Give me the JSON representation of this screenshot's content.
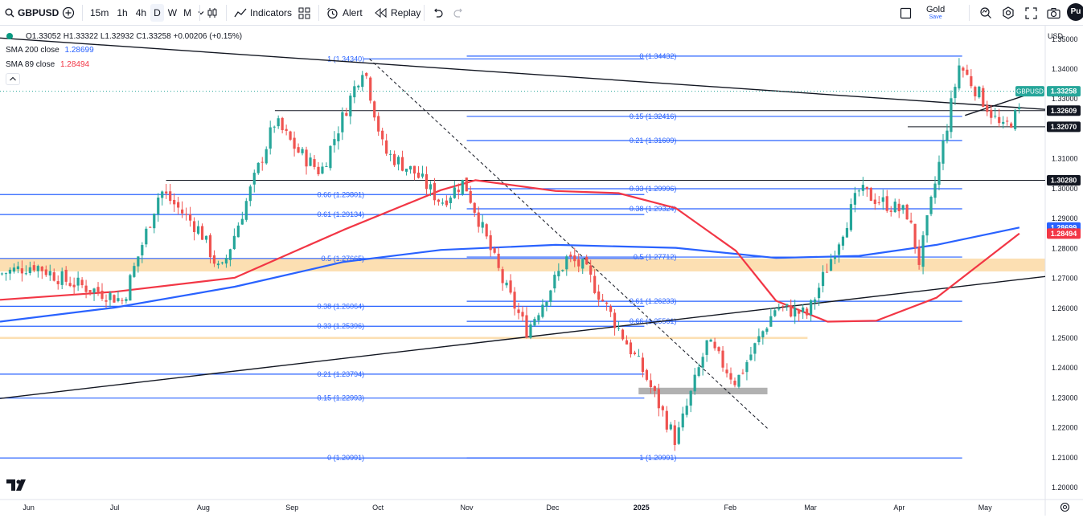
{
  "toolbar": {
    "symbol": "GBPUSD",
    "timeframes": [
      "15m",
      "1h",
      "4h",
      "D",
      "W",
      "M"
    ],
    "active_timeframe": "D",
    "indicators_label": "Indicators",
    "alert_label": "Alert",
    "replay_label": "Replay",
    "layout_name": "Gold",
    "save_label": "Save",
    "avatar_label": "Pu"
  },
  "legend": {
    "ohlc": "O1.33052 H1.33322 L1.32932 C1.33258 +0.00206 (+0.15%)",
    "sma200_label": "SMA 200 close",
    "sma200_value": "1.28699",
    "sma89_label": "SMA 89 close",
    "sma89_value": "1.28494"
  },
  "currency": "USD",
  "colors": {
    "up": "#26a69a",
    "down": "#ef5350",
    "sma200": "#2962ff",
    "sma89": "#f23645",
    "fib": "#2962ff",
    "zone": "#fcd9a5"
  },
  "chart_data": {
    "type": "candlestick",
    "symbol": "GBPUSD",
    "interval": "1D",
    "x_tick_labels": [
      "Jun",
      "Jul",
      "Aug",
      "Sep",
      "Oct",
      "Nov",
      "Dec",
      "2025",
      "Feb",
      "Mar",
      "Apr",
      "May"
    ],
    "y_tick_labels": [
      "1.35000",
      "1.34000",
      "1.33000",
      "1.32000",
      "1.31000",
      "1.30000",
      "1.29000",
      "1.28000",
      "1.27000",
      "1.26000",
      "1.25000",
      "1.24000",
      "1.23000",
      "1.22000",
      "1.21000",
      "1.20000"
    ],
    "ylim": [
      1.196,
      1.3545
    ],
    "last_price": "1.33258",
    "price_tags": [
      {
        "label": "1.32609",
        "price": 1.32609,
        "style": "black"
      },
      {
        "label": "1.32070",
        "price": 1.3207,
        "style": "black"
      },
      {
        "label": "1.30280",
        "price": 1.3028,
        "style": "black"
      },
      {
        "label": "1.28699",
        "price": 1.28699,
        "style": "blue"
      },
      {
        "label": "1.28494",
        "price": 1.28494,
        "style": "red"
      }
    ],
    "anchors": [
      {
        "date": "2024-05-22",
        "close": 1.2715
      },
      {
        "date": "2024-06-03",
        "close": 1.2745
      },
      {
        "date": "2024-06-14",
        "close": 1.2692
      },
      {
        "date": "2024-06-28",
        "close": 1.2648
      },
      {
        "date": "2024-07-04",
        "close": 1.2625
      },
      {
        "date": "2024-07-17",
        "close": 1.2995
      },
      {
        "date": "2024-07-31",
        "close": 1.2858
      },
      {
        "date": "2024-08-07",
        "close": 1.2715
      },
      {
        "date": "2024-08-26",
        "close": 1.3225
      },
      {
        "date": "2024-09-03",
        "close": 1.3125
      },
      {
        "date": "2024-09-11",
        "close": 1.3055
      },
      {
        "date": "2024-09-26",
        "close": 1.3415
      },
      {
        "date": "2024-10-03",
        "close": 1.3125
      },
      {
        "date": "2024-10-14",
        "close": 1.3052
      },
      {
        "date": "2024-10-23",
        "close": 1.2955
      },
      {
        "date": "2024-10-31",
        "close": 1.3025
      },
      {
        "date": "2024-11-14",
        "close": 1.2678
      },
      {
        "date": "2024-11-22",
        "close": 1.2525
      },
      {
        "date": "2024-12-06",
        "close": 1.2768
      },
      {
        "date": "2024-12-12",
        "close": 1.2735
      },
      {
        "date": "2024-12-24",
        "close": 1.2532
      },
      {
        "date": "2025-01-02",
        "close": 1.2382
      },
      {
        "date": "2025-01-13",
        "close": 1.2155
      },
      {
        "date": "2025-01-24",
        "close": 1.2485
      },
      {
        "date": "2025-02-03",
        "close": 1.2352
      },
      {
        "date": "2025-02-17",
        "close": 1.2605
      },
      {
        "date": "2025-02-28",
        "close": 1.2578
      },
      {
        "date": "2025-03-18",
        "close": 1.2992
      },
      {
        "date": "2025-04-04",
        "close": 1.2915
      },
      {
        "date": "2025-04-08",
        "close": 1.2755
      },
      {
        "date": "2025-04-22",
        "close": 1.3415
      },
      {
        "date": "2025-05-01",
        "close": 1.3285
      },
      {
        "date": "2025-05-07",
        "close": 1.3195
      },
      {
        "date": "2025-05-13",
        "close": 1.3258
      }
    ],
    "sma200": [
      {
        "date": "2024-05-22",
        "value": 1.2555
      },
      {
        "date": "2024-07-01",
        "value": 1.2602
      },
      {
        "date": "2024-08-12",
        "value": 1.2672
      },
      {
        "date": "2024-09-19",
        "value": 1.2755
      },
      {
        "date": "2024-10-23",
        "value": 1.2795
      },
      {
        "date": "2024-12-02",
        "value": 1.2812
      },
      {
        "date": "2025-01-13",
        "value": 1.2802
      },
      {
        "date": "2025-02-17",
        "value": 1.2768
      },
      {
        "date": "2025-03-18",
        "value": 1.2775
      },
      {
        "date": "2025-04-14",
        "value": 1.2812
      },
      {
        "date": "2025-05-13",
        "value": 1.287
      }
    ],
    "sma89": [
      {
        "date": "2024-05-22",
        "value": 1.2628
      },
      {
        "date": "2024-07-01",
        "value": 1.2655
      },
      {
        "date": "2024-08-12",
        "value": 1.2702
      },
      {
        "date": "2024-09-19",
        "value": 1.2862
      },
      {
        "date": "2024-10-23",
        "value": 1.2995
      },
      {
        "date": "2024-11-04",
        "value": 1.3028
      },
      {
        "date": "2024-12-02",
        "value": 1.2992
      },
      {
        "date": "2024-12-24",
        "value": 1.2985
      },
      {
        "date": "2025-01-13",
        "value": 1.2935
      },
      {
        "date": "2025-02-03",
        "value": 1.2792
      },
      {
        "date": "2025-02-17",
        "value": 1.2625
      },
      {
        "date": "2025-03-07",
        "value": 1.2555
      },
      {
        "date": "2025-03-24",
        "value": 1.2558
      },
      {
        "date": "2025-04-14",
        "value": 1.2635
      },
      {
        "date": "2025-05-13",
        "value": 1.285
      }
    ],
    "fibonacci": [
      {
        "label": "1 (1.34340)",
        "price": 1.3434,
        "from": "2024-09-26",
        "to": "2025-01-02"
      },
      {
        "label": "0.66 (1.29801)",
        "price": 1.29801,
        "from": "2024-05-22",
        "to": "2025-01-02"
      },
      {
        "label": "0.61 (1.29134)",
        "price": 1.29134,
        "from": "2024-05-22",
        "to": "2025-01-02"
      },
      {
        "label": "0.5 (1.27665)",
        "price": 1.27665,
        "from": "2024-05-22",
        "to": "2025-01-02"
      },
      {
        "label": "0.38 (1.26064)",
        "price": 1.26064,
        "from": "2024-05-22",
        "to": "2025-01-02"
      },
      {
        "label": "0.33 (1.25396)",
        "price": 1.25396,
        "from": "2024-05-22",
        "to": "2025-01-02"
      },
      {
        "label": "0.21 (1.23794)",
        "price": 1.23794,
        "from": "2024-05-22",
        "to": "2025-01-02"
      },
      {
        "label": "0.15 (1.22993)",
        "price": 1.22993,
        "from": "2024-05-22",
        "to": "2025-01-02"
      },
      {
        "label": "0 (1.20991)",
        "price": 1.20991,
        "from": "2024-05-22",
        "to": "2025-01-02"
      },
      {
        "label": "0 (1.34432)",
        "price": 1.34432,
        "from": "2024-11-01",
        "to": "2025-04-23"
      },
      {
        "label": "0.15 (1.32416)",
        "price": 1.32416,
        "from": "2024-11-01",
        "to": "2025-04-23"
      },
      {
        "label": "0.21 (1.31609)",
        "price": 1.31609,
        "from": "2024-11-01",
        "to": "2025-04-23"
      },
      {
        "label": "0.33 (1.29996)",
        "price": 1.29996,
        "from": "2024-11-01",
        "to": "2025-04-23"
      },
      {
        "label": "0.38 (1.29324)",
        "price": 1.29324,
        "from": "2024-11-01",
        "to": "2025-04-23"
      },
      {
        "label": "0.5 (1.27712)",
        "price": 1.27712,
        "from": "2024-11-01",
        "to": "2025-04-23"
      },
      {
        "label": "0.61 (1.26233)",
        "price": 1.26233,
        "from": "2024-11-01",
        "to": "2025-04-23"
      },
      {
        "label": "0.66 (1.25561)",
        "price": 1.25561,
        "from": "2024-11-01",
        "to": "2025-04-23"
      },
      {
        "label": "1 (1.20991)",
        "price": 1.20991,
        "from": "2024-11-01",
        "to": "2025-04-23"
      }
    ],
    "horizontal_lines": [
      {
        "price": 1.3261,
        "from": "2024-08-26",
        "to": "2025-05-22"
      },
      {
        "price": 1.3028,
        "from": "2024-07-19",
        "to": "2025-05-22"
      },
      {
        "price": 1.3207,
        "from": "2025-04-04",
        "to": "2025-05-22"
      }
    ],
    "trend_lines": [
      {
        "from": {
          "date": "2024-05-22",
          "price": 1.3504
        },
        "to": {
          "date": "2025-05-22",
          "price": 1.3265
        },
        "style": "solid"
      },
      {
        "from": {
          "date": "2024-05-22",
          "price": 1.2298
        },
        "to": {
          "date": "2025-05-22",
          "price": 1.2706
        },
        "style": "solid"
      },
      {
        "from": {
          "date": "2024-09-28",
          "price": 1.3434
        },
        "to": {
          "date": "2025-02-14",
          "price": 1.2198
        },
        "style": "dashed"
      },
      {
        "from": {
          "date": "2025-04-24",
          "price": 1.3245
        },
        "to": {
          "date": "2025-05-16",
          "price": 1.3315
        },
        "style": "solid"
      }
    ],
    "zones": [
      {
        "from": "2024-05-22",
        "to": "2025-05-22",
        "top": 1.2766,
        "bottom": 1.2723,
        "color": "#fcd9a5"
      },
      {
        "from": "2024-05-22",
        "to": "2025-02-28",
        "top": 1.2504,
        "bottom": 1.2497,
        "color": "#fcd9a5"
      },
      {
        "from": "2024-12-31",
        "to": "2025-02-14",
        "top": 1.2334,
        "bottom": 1.2312,
        "color": "#a3a3a3"
      }
    ]
  }
}
